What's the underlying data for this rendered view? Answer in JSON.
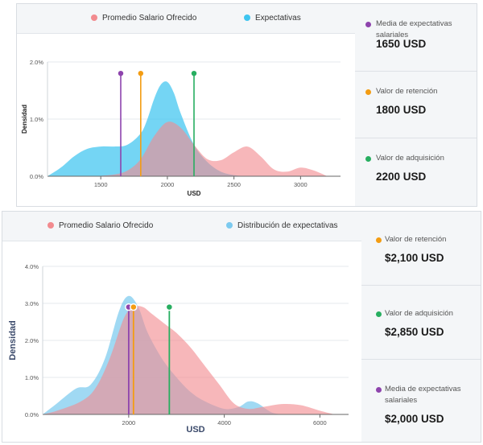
{
  "colors": {
    "offered": "#f28b8f",
    "expect": "#3ec5f0",
    "expect2": "#7ccaef",
    "media": "#8e44ad",
    "retention": "#f39c12",
    "acquisition": "#27ae60"
  },
  "panels": [
    {
      "legend": [
        "Promedio Salario Ofrecido",
        "Expectativas"
      ],
      "stats": [
        {
          "label": "Media de expectativas salariales",
          "value": "1650 USD",
          "color": "#8e44ad"
        },
        {
          "label": "Valor de retención",
          "value": "1800 USD",
          "color": "#f39c12"
        },
        {
          "label": "Valor de adquisición",
          "value": "2200 USD",
          "color": "#27ae60"
        }
      ]
    },
    {
      "legend": [
        "Promedio Salario Ofrecido",
        "Distribución de expectativas"
      ],
      "stats": [
        {
          "label": "Valor de retención",
          "value": "$2,100 USD",
          "color": "#f39c12"
        },
        {
          "label": "Valor de adquisición",
          "value": "$2,850 USD",
          "color": "#27ae60"
        },
        {
          "label": "Media de expectativas salariales",
          "value": "$2,000 USD",
          "color": "#8e44ad"
        }
      ]
    }
  ],
  "chart_data": [
    {
      "type": "area",
      "xlabel": "USD",
      "ylabel": "Densidad",
      "xlim": [
        1100,
        3300
      ],
      "ylim": [
        0,
        2.0
      ],
      "xticks": [
        "1500",
        "2000",
        "2500",
        "3000"
      ],
      "yticks": [
        "0.0%",
        "1.0%",
        "2.0%"
      ],
      "grid": true,
      "legend_position": "top",
      "series": [
        {
          "name": "Expectativas",
          "x": [
            1100,
            1200,
            1300,
            1400,
            1500,
            1600,
            1700,
            1800,
            1850,
            1900,
            1950,
            2000,
            2050,
            2100,
            2200,
            2300,
            2400,
            2500,
            2600
          ],
          "y": [
            0,
            0.15,
            0.35,
            0.48,
            0.52,
            0.52,
            0.55,
            0.75,
            1.0,
            1.35,
            1.6,
            1.65,
            1.45,
            1.1,
            0.55,
            0.25,
            0.08,
            0.02,
            0
          ]
        },
        {
          "name": "Promedio Salario Ofrecido",
          "x": [
            1450,
            1600,
            1700,
            1800,
            1900,
            2000,
            2100,
            2200,
            2300,
            2400,
            2500,
            2600,
            2700,
            2800,
            2900,
            3000,
            3100,
            3200
          ],
          "y": [
            0,
            0.03,
            0.1,
            0.3,
            0.7,
            0.95,
            0.85,
            0.55,
            0.3,
            0.28,
            0.42,
            0.52,
            0.35,
            0.12,
            0.08,
            0.15,
            0.1,
            0
          ]
        }
      ],
      "markers": [
        {
          "name": "Media de expectativas salariales",
          "x": 1650,
          "y": 1.8,
          "color": "#8e44ad"
        },
        {
          "name": "Valor de retención",
          "x": 1800,
          "y": 1.8,
          "color": "#f39c12"
        },
        {
          "name": "Valor de adquisición",
          "x": 2200,
          "y": 1.8,
          "color": "#27ae60"
        }
      ]
    },
    {
      "type": "area",
      "xlabel": "USD",
      "ylabel": "Densidad",
      "xlim": [
        200,
        6600
      ],
      "ylim": [
        0,
        4.0
      ],
      "xticks": [
        "2000",
        "4000",
        "6000"
      ],
      "yticks": [
        "0.0%",
        "1.0%",
        "2.0%",
        "3.0%",
        "4.0%"
      ],
      "grid": true,
      "legend_position": "top",
      "series": [
        {
          "name": "Distribución de expectativas",
          "x": [
            200,
            500,
            900,
            1200,
            1500,
            1800,
            2000,
            2200,
            2400,
            2700,
            3000,
            3300,
            3600,
            4000,
            4300,
            4500,
            4700,
            5000,
            5300
          ],
          "y": [
            0,
            0.3,
            0.7,
            0.8,
            1.5,
            2.8,
            3.2,
            2.9,
            2.2,
            1.5,
            1.0,
            0.6,
            0.35,
            0.15,
            0.2,
            0.35,
            0.3,
            0.05,
            0
          ]
        },
        {
          "name": "Promedio Salario Ofrecido",
          "x": [
            200,
            500,
            1000,
            1300,
            1600,
            1900,
            2100,
            2300,
            2500,
            2800,
            3000,
            3300,
            3600,
            3900,
            4200,
            4500,
            4800,
            5200,
            5600,
            6000,
            6300
          ],
          "y": [
            0,
            0.1,
            0.35,
            0.7,
            1.5,
            2.6,
            2.9,
            2.9,
            2.7,
            2.4,
            2.2,
            1.8,
            1.3,
            0.8,
            0.3,
            0.15,
            0.2,
            0.28,
            0.25,
            0.1,
            0
          ]
        }
      ],
      "markers": [
        {
          "name": "Media de expectativas salariales",
          "x": 2000,
          "y": 2.9,
          "color": "#8e44ad"
        },
        {
          "name": "Valor de retención",
          "x": 2100,
          "y": 2.9,
          "color": "#f39c12"
        },
        {
          "name": "Valor de adquisición",
          "x": 2850,
          "y": 2.9,
          "color": "#27ae60"
        }
      ]
    }
  ]
}
